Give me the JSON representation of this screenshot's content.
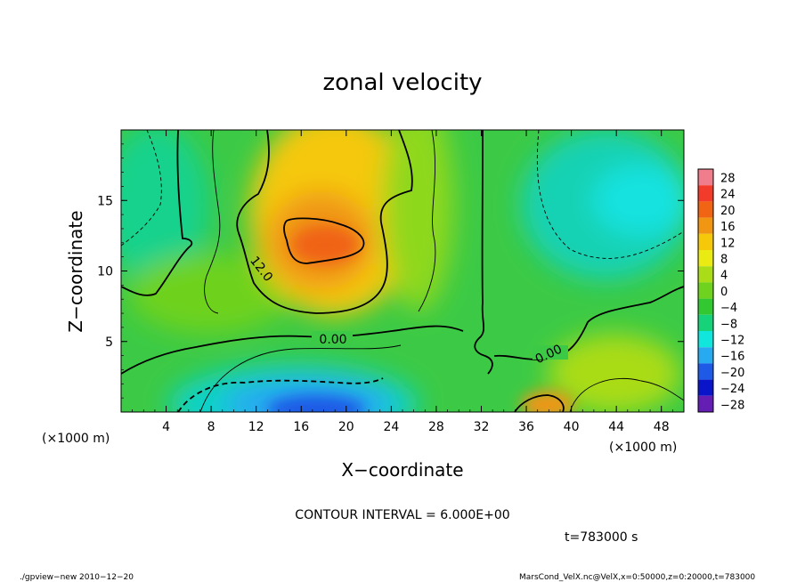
{
  "chart_data": {
    "type": "heatmap",
    "title": "zonal velocity",
    "xlabel": "X−coordinate",
    "ylabel": "Z−coordinate",
    "x_unit": "(×1000 m)",
    "y_unit": "(×1000 m)",
    "xlim": [
      0,
      50
    ],
    "ylim": [
      0,
      20
    ],
    "xticks": [
      "4",
      "8",
      "12",
      "16",
      "20",
      "24",
      "28",
      "32",
      "36",
      "40",
      "44",
      "48"
    ],
    "yticks": [
      "5",
      "10",
      "15"
    ],
    "colorbar": {
      "levels": [
        "28",
        "24",
        "20",
        "16",
        "12",
        "8",
        "4",
        "0",
        "−4",
        "−8",
        "−12",
        "−16",
        "−20",
        "−24",
        "−28"
      ],
      "colors_top_to_bottom": [
        "#f07d8c",
        "#f33b2c",
        "#f06414",
        "#f09612",
        "#f5c80a",
        "#ebeb14",
        "#aadc18",
        "#6ed21e",
        "#32c832",
        "#16d278",
        "#10e6dc",
        "#28aaf0",
        "#1e5ae6",
        "#0a14c8",
        "#641eb4"
      ]
    },
    "contour_interval": "CONTOUR INTERVAL = 6.000E+00",
    "contour_labels": [
      "12.0",
      "0.00",
      "0.00"
    ],
    "field_features": [
      {
        "x": 19,
        "z": 11.5,
        "value": 20
      },
      {
        "x": 19,
        "z": 1.2,
        "value": -18
      },
      {
        "x": 38,
        "z": 0.8,
        "value": 16
      },
      {
        "x": 46,
        "z": 16,
        "value": -10
      },
      {
        "x": 1,
        "z": 16,
        "value": -4
      }
    ],
    "time": "t=783000 s"
  },
  "footer": {
    "left": "./gpview−new   2010−12−20",
    "right": "MarsCond_VelX.nc@VelX,x=0:50000,z=0:20000,t=783000"
  }
}
